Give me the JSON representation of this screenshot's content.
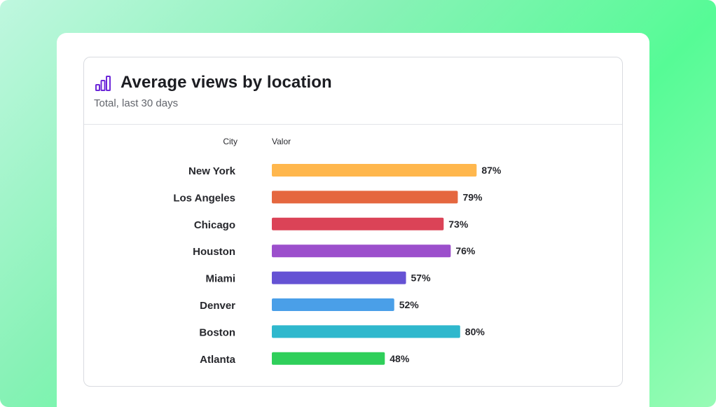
{
  "card": {
    "title": "Average views by location",
    "subtitle": "Total, last 30 days",
    "icon": "bar-chart-icon",
    "accent_color": "#6d28d9"
  },
  "chart_data": {
    "type": "bar",
    "orientation": "horizontal",
    "category_header": "City",
    "value_header": "Valor",
    "categories": [
      "New York",
      "Los Angeles",
      "Chicago",
      "Houston",
      "Miami",
      "Denver",
      "Boston",
      "Atlanta"
    ],
    "values": [
      87,
      79,
      73,
      76,
      57,
      52,
      80,
      48
    ],
    "value_labels": [
      "87%",
      "79%",
      "73%",
      "76%",
      "57%",
      "52%",
      "80%",
      "48%"
    ],
    "colors": [
      "#ffb74d",
      "#e5673f",
      "#db4357",
      "#9c4fcc",
      "#6552d4",
      "#4a9fe8",
      "#2fb8cd",
      "#2fcf5a"
    ],
    "unit": "%",
    "xlim": [
      0,
      100
    ],
    "grid": false,
    "legend": "none"
  }
}
